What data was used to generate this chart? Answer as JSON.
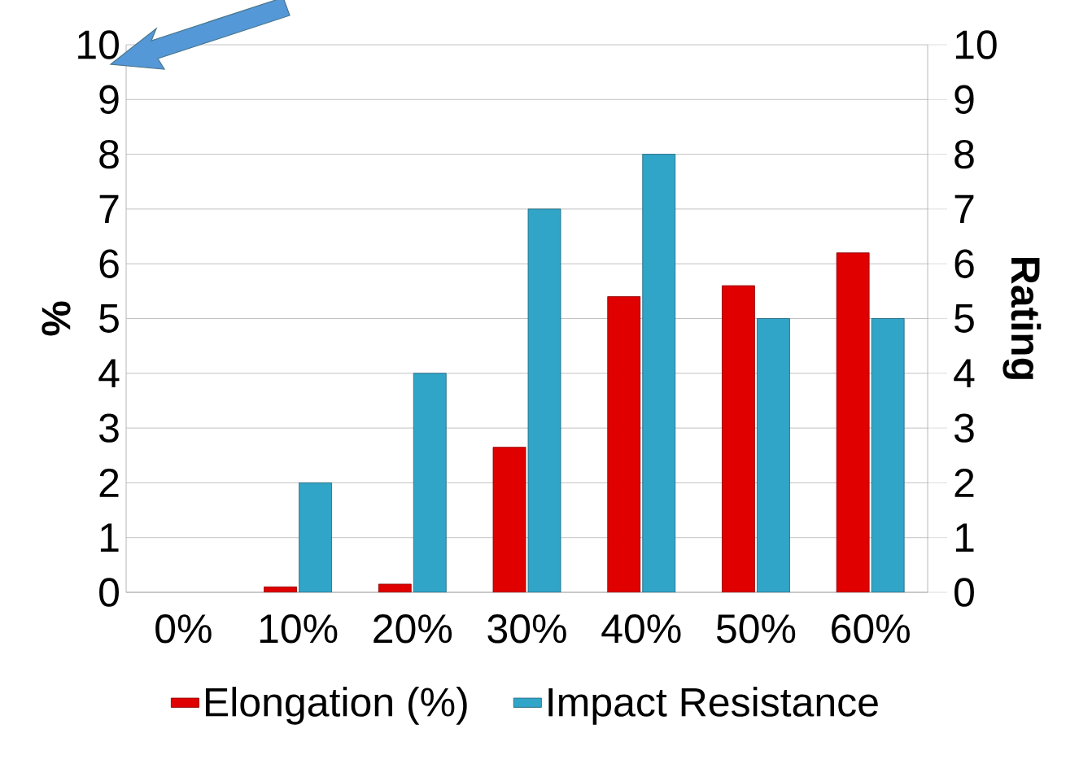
{
  "chart_data": {
    "type": "bar",
    "categories": [
      "0%",
      "10%",
      "20%",
      "30%",
      "40%",
      "50%",
      "60%"
    ],
    "series": [
      {
        "name": "Elongation (%)",
        "color": "#e00000",
        "values": [
          null,
          0.1,
          0.15,
          2.65,
          5.4,
          5.6,
          6.2
        ]
      },
      {
        "name": "Impact Resistance",
        "color": "#31a5c8",
        "axis": "y2",
        "values": [
          null,
          2,
          4,
          7,
          8,
          5,
          5
        ]
      }
    ],
    "ylabel": "%",
    "y2label": "Rating",
    "ylim": [
      0,
      10
    ],
    "yticks": [
      0,
      1,
      2,
      3,
      4,
      5,
      6,
      7,
      8,
      9,
      10
    ],
    "y2lim": [
      0,
      10
    ],
    "y2ticks": [
      0,
      1,
      2,
      3,
      4,
      5,
      6,
      7,
      8,
      9,
      10
    ],
    "grid": "y",
    "legend": "bottom"
  }
}
